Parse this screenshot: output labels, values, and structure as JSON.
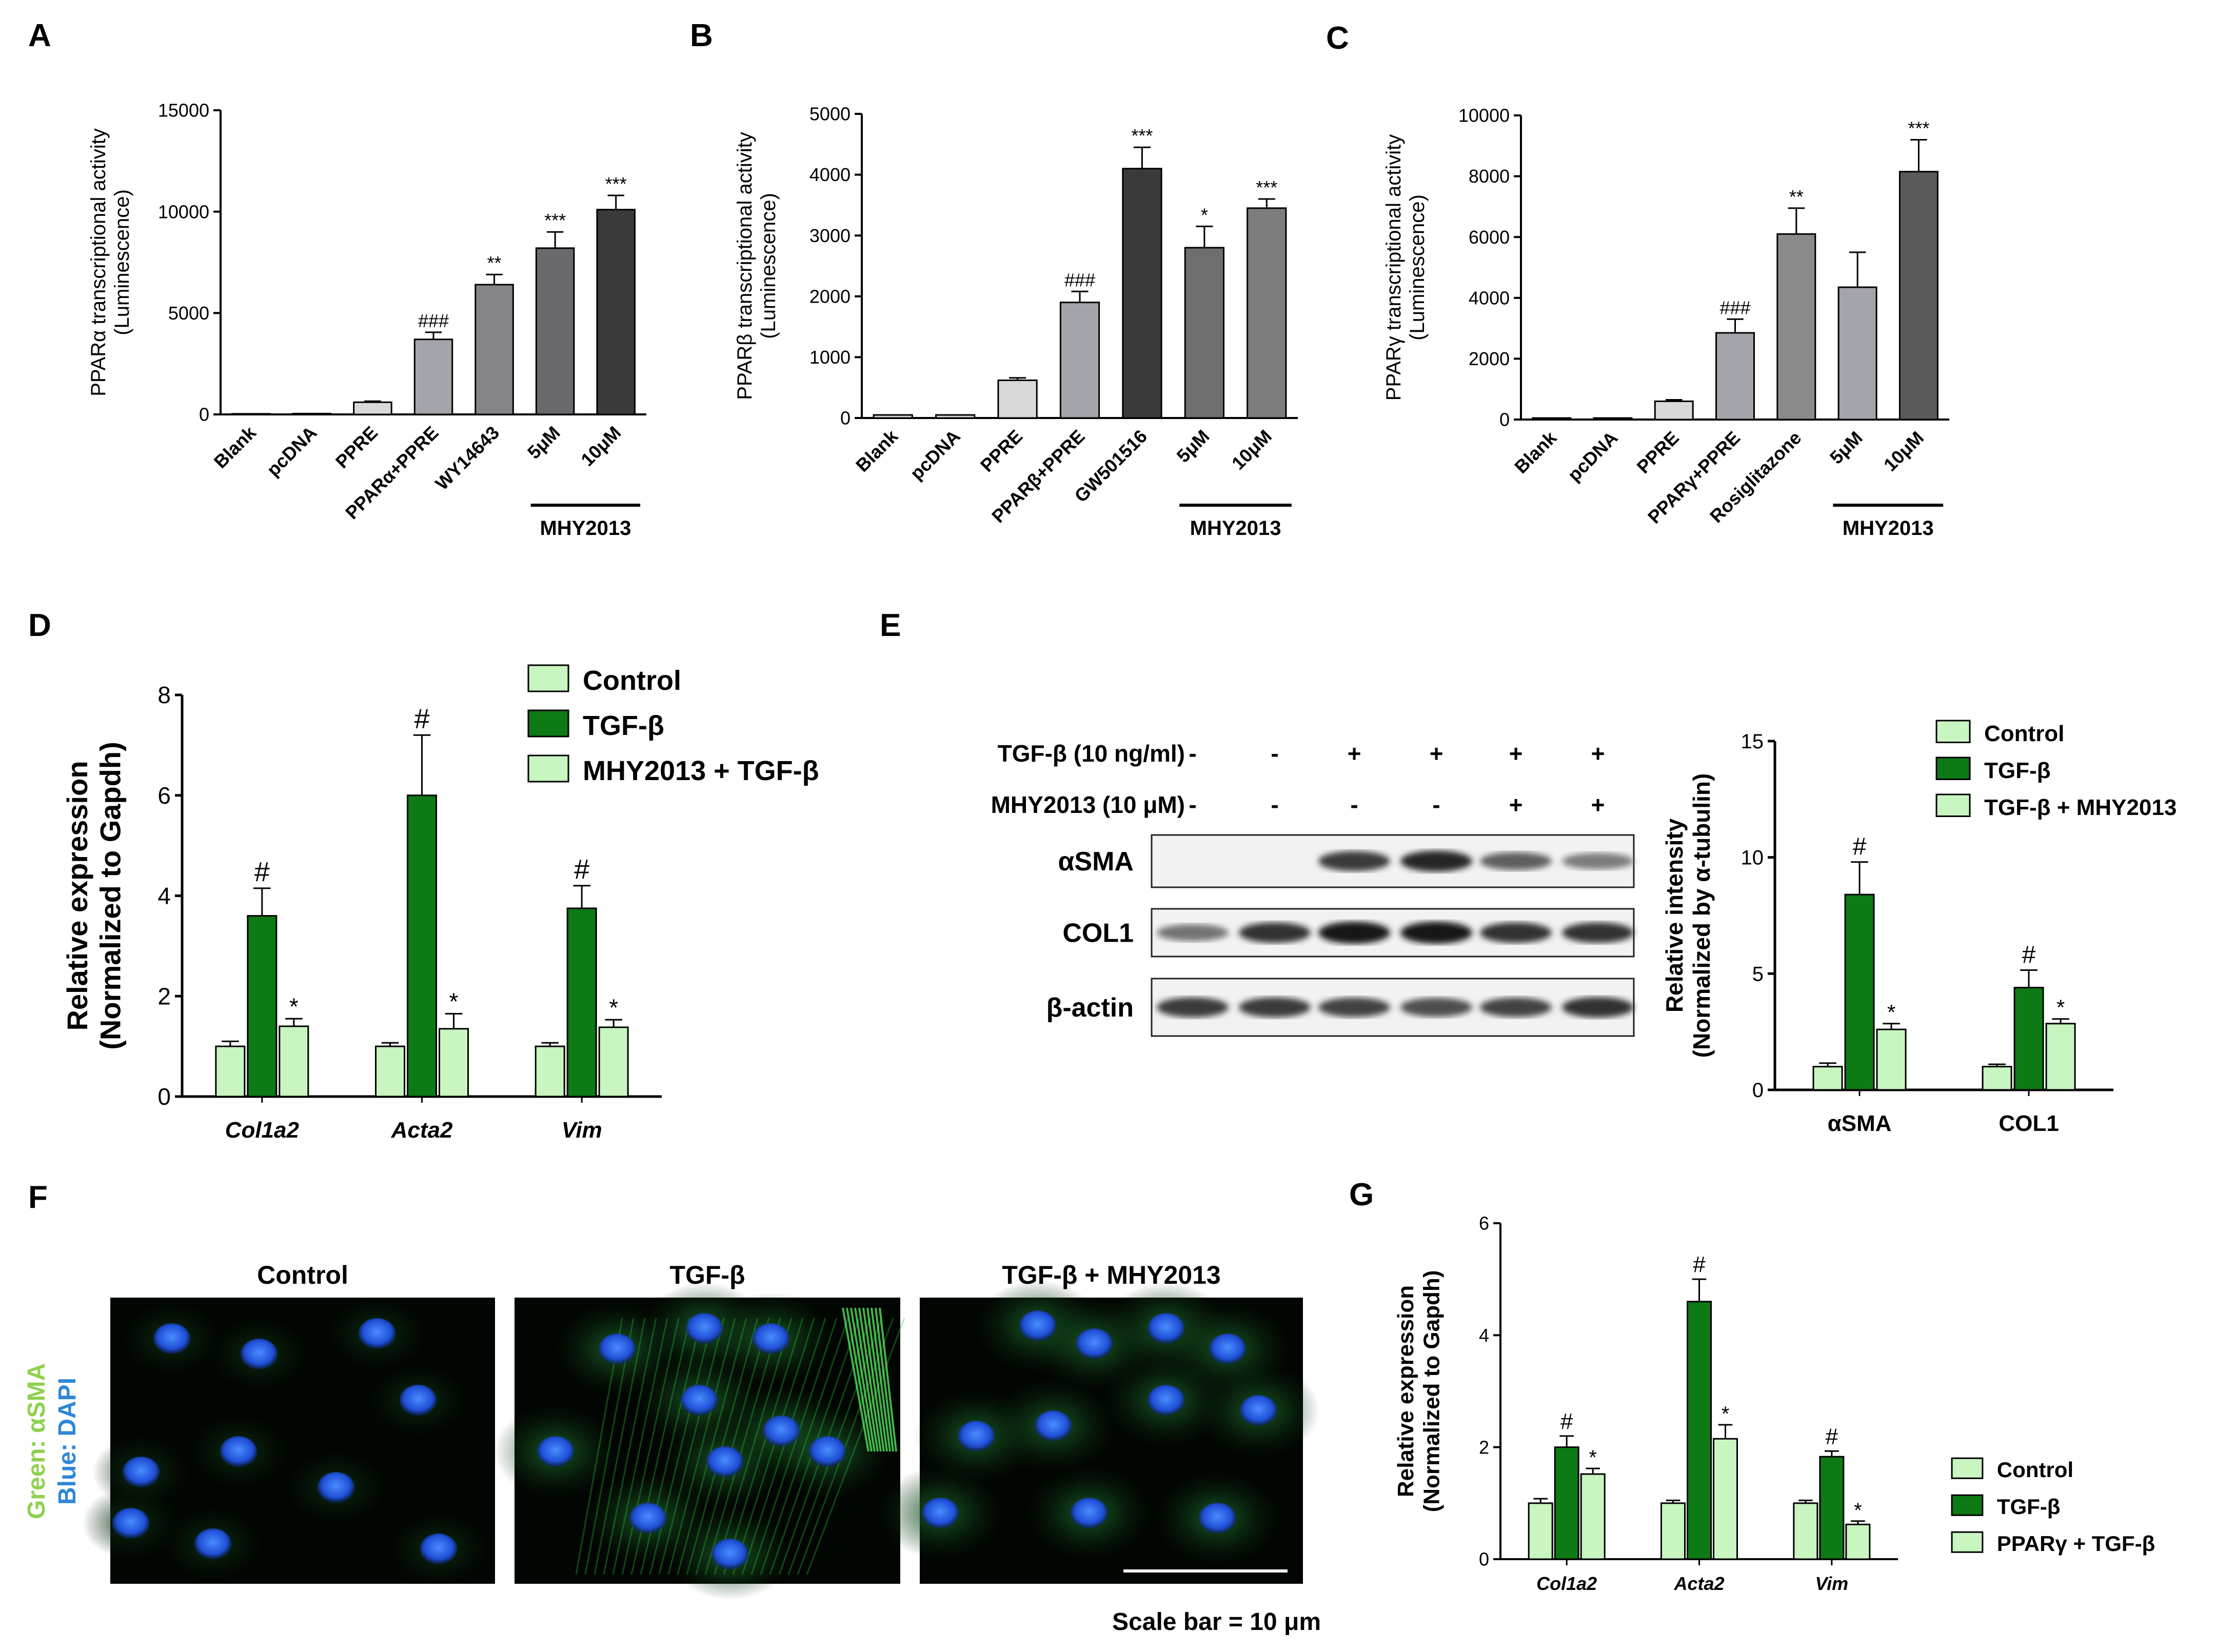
{
  "panels": {
    "a": "A",
    "b": "B",
    "c": "C",
    "d": "D",
    "e": "E",
    "f": "F",
    "g": "G"
  },
  "colors": {
    "light": "#c8f5c0",
    "dark": "#0d7a16",
    "bar_light": "#d9d9d9",
    "bar_mid": "#a4a4ab",
    "bar_dark": "#3a3a3a",
    "bar_grey": "#6e6e6e"
  },
  "chart_data": [
    {
      "panel": "A",
      "type": "bar",
      "ylabel": [
        "PPARα transcriptional activity",
        "(Luminescence)"
      ],
      "ylim": [
        0,
        15000
      ],
      "yticks": [
        "0",
        "5000",
        "10000",
        "15000"
      ],
      "categories": [
        "Blank",
        "pcDNA",
        "PPRE",
        "PPARα+PPRE",
        "WY14643",
        "5μM",
        "10μM"
      ],
      "values": [
        30,
        40,
        600,
        3700,
        6400,
        8200,
        10100
      ],
      "errors": [
        0,
        0,
        50,
        350,
        500,
        800,
        700
      ],
      "annotations": [
        "",
        "",
        "",
        "###",
        "**",
        "***",
        "***"
      ],
      "group_label": "MHY2013"
    },
    {
      "panel": "B",
      "type": "bar",
      "ylabel": [
        "PPARβ transcriptional activity",
        "(Luminescence)"
      ],
      "ylim": [
        0,
        5000
      ],
      "yticks": [
        "0",
        "1000",
        "2000",
        "3000",
        "4000",
        "5000"
      ],
      "categories": [
        "Blank",
        "pcDNA",
        "PPRE",
        "PPARβ+PPRE",
        "GW501516",
        "5μM",
        "10μM"
      ],
      "values": [
        50,
        50,
        620,
        1900,
        4100,
        2800,
        3450
      ],
      "errors": [
        0,
        0,
        40,
        180,
        350,
        350,
        150
      ],
      "annotations": [
        "",
        "",
        "",
        "###",
        "***",
        "*",
        "***"
      ],
      "group_label": "MHY2013"
    },
    {
      "panel": "C",
      "type": "bar",
      "ylabel": [
        "PPARγ transcriptional activity",
        "(Luminescence)"
      ],
      "ylim": [
        0,
        10000
      ],
      "yticks": [
        "0",
        "2000",
        "4000",
        "6000",
        "8000",
        "10000"
      ],
      "categories": [
        "Blank",
        "pcDNA",
        "PPRE",
        "PPARγ+PPRE",
        "Rosiglitazone",
        "5μM",
        "10μM"
      ],
      "values": [
        50,
        50,
        600,
        2850,
        6100,
        4350,
        8150
      ],
      "errors": [
        0,
        0,
        50,
        450,
        850,
        1150,
        1050
      ],
      "annotations": [
        "",
        "",
        "",
        "###",
        "**",
        "",
        "***"
      ],
      "group_label": "MHY2013"
    },
    {
      "panel": "D",
      "type": "bar",
      "ylabel": [
        "Relative expression",
        "(Normalized to Gapdh)"
      ],
      "ylim": [
        0,
        8
      ],
      "yticks": [
        "0",
        "2",
        "4",
        "6",
        "8"
      ],
      "categories": [
        "Col1a2",
        "Acta2",
        "Vim"
      ],
      "series": [
        {
          "name": "Control",
          "values": [
            1.0,
            1.0,
            1.0
          ],
          "errors": [
            0.1,
            0.07,
            0.07
          ]
        },
        {
          "name": "TGF-β",
          "values": [
            3.6,
            6.0,
            3.75
          ],
          "errors": [
            0.55,
            1.2,
            0.45
          ]
        },
        {
          "name": "MHY2013 + TGF-β",
          "values": [
            1.4,
            1.35,
            1.38
          ],
          "errors": [
            0.15,
            0.3,
            0.15
          ]
        }
      ],
      "annotations": [
        "#",
        "*"
      ]
    },
    {
      "panel": "E",
      "type": "bar",
      "ylabel": [
        "Relative intensity",
        "(Normalized by α-tubulin)"
      ],
      "ylim": [
        0,
        15
      ],
      "yticks": [
        "0",
        "5",
        "10",
        "15"
      ],
      "categories": [
        "αSMA",
        "COL1"
      ],
      "series": [
        {
          "name": "Control",
          "values": [
            1.0,
            1.0
          ],
          "errors": [
            0.15,
            0.1
          ]
        },
        {
          "name": "TGF-β",
          "values": [
            8.4,
            4.4
          ],
          "errors": [
            1.4,
            0.75
          ]
        },
        {
          "name": "TGF-β + MHY2013",
          "values": [
            2.6,
            2.85
          ],
          "errors": [
            0.25,
            0.2
          ]
        }
      ],
      "annotations": [
        "#",
        "*"
      ]
    },
    {
      "panel": "G",
      "type": "bar",
      "ylabel": [
        "Relative expression",
        "(Normalized to Gapdh)"
      ],
      "ylim": [
        0,
        6
      ],
      "yticks": [
        "0",
        "2",
        "4",
        "6"
      ],
      "categories": [
        "Col1a2",
        "Acta2",
        "Vim"
      ],
      "series": [
        {
          "name": "Control",
          "values": [
            1.0,
            1.0,
            1.0
          ],
          "errors": [
            0.08,
            0.05,
            0.05
          ]
        },
        {
          "name": "TGF-β",
          "values": [
            2.0,
            4.6,
            1.83
          ],
          "errors": [
            0.2,
            0.4,
            0.1
          ]
        },
        {
          "name": "PPARγ + TGF-β",
          "values": [
            1.52,
            2.15,
            0.62
          ],
          "errors": [
            0.1,
            0.25,
            0.06
          ]
        }
      ],
      "annotations": [
        "#",
        "*"
      ]
    }
  ],
  "blot": {
    "rows": [
      {
        "label": "TGF-β (10 ng/ml)",
        "marks": [
          "-",
          "-",
          "+",
          "+",
          "+",
          "+"
        ]
      },
      {
        "label": "MHY2013 (10 μM)",
        "marks": [
          "-",
          "-",
          "-",
          "-",
          "+",
          "+"
        ]
      }
    ],
    "bands": [
      "αSMA",
      "COL1",
      "β-actin"
    ],
    "band_intensity": [
      [
        0.0,
        0.0,
        0.75,
        0.85,
        0.55,
        0.4
      ],
      [
        0.45,
        0.8,
        0.95,
        0.95,
        0.8,
        0.8
      ],
      [
        0.75,
        0.75,
        0.7,
        0.65,
        0.7,
        0.8
      ]
    ]
  },
  "micro": {
    "titles": [
      "Control",
      "TGF-β",
      "TGF-β + MHY2013"
    ],
    "side_green": "Green: αSMA",
    "side_blue": "Blue: DAPI",
    "scale_bar": "Scale bar = 10 μm"
  }
}
